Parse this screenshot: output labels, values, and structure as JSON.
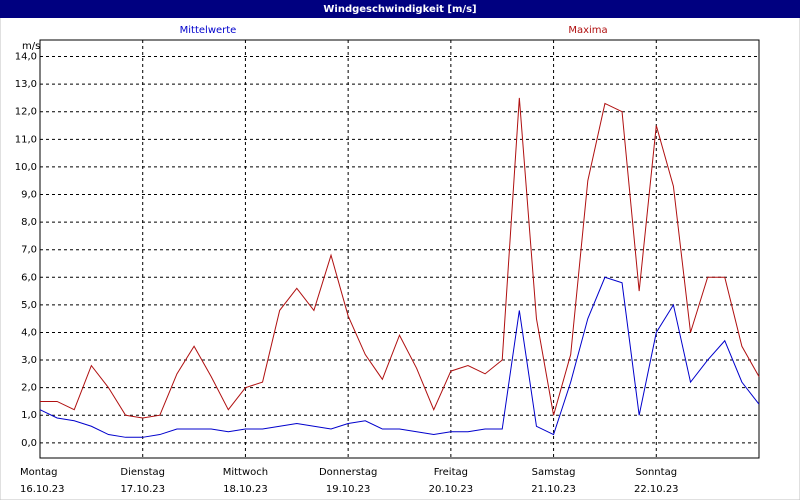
{
  "chart_data": {
    "type": "line",
    "title": "Windgeschwindigkeit [m/s]",
    "y_label": "m/s",
    "x": [
      0,
      4,
      8,
      12,
      16,
      20,
      24,
      28,
      32,
      36,
      40,
      44,
      48,
      52,
      56,
      60,
      64,
      68,
      72,
      76,
      80,
      84,
      88,
      92,
      96,
      100,
      104,
      108,
      112,
      116,
      120,
      124,
      128,
      132,
      136,
      140,
      144,
      148,
      152,
      156,
      160,
      164,
      168
    ],
    "xlim": [
      0,
      168
    ],
    "xticks": [
      {
        "value": 0,
        "label": "Montag"
      },
      {
        "value": 24,
        "label": "Dienstag"
      },
      {
        "value": 48,
        "label": "Mittwoch"
      },
      {
        "value": 72,
        "label": "Donnerstag"
      },
      {
        "value": 96,
        "label": "Freitag"
      },
      {
        "value": 120,
        "label": "Samstag"
      },
      {
        "value": 144,
        "label": "Sonntag"
      }
    ],
    "xtick_dates": [
      "16.10.23",
      "17.10.23",
      "18.10.23",
      "19.10.23",
      "20.10.23",
      "21.10.23",
      "22.10.23"
    ],
    "ylim": [
      -0.55,
      14.6
    ],
    "yticks": [
      {
        "value": 0,
        "label": "0,0"
      },
      {
        "value": 1,
        "label": "1,0"
      },
      {
        "value": 2,
        "label": "2,0"
      },
      {
        "value": 3,
        "label": "3,0"
      },
      {
        "value": 4,
        "label": "4,0"
      },
      {
        "value": 5,
        "label": "5,0"
      },
      {
        "value": 6,
        "label": "6,0"
      },
      {
        "value": 7,
        "label": "7,0"
      },
      {
        "value": 8,
        "label": "8,0"
      },
      {
        "value": 9,
        "label": "9,0"
      },
      {
        "value": 10,
        "label": "10,0"
      },
      {
        "value": 11,
        "label": "11,0"
      },
      {
        "value": 12,
        "label": "12,0"
      },
      {
        "value": 13,
        "label": "13,0"
      },
      {
        "value": 14,
        "label": "14,0"
      }
    ],
    "grid": true,
    "series": [
      {
        "name": "Mittelwerte",
        "color": "#0000cc",
        "values": [
          1.2,
          0.9,
          0.8,
          0.6,
          0.3,
          0.2,
          0.2,
          0.3,
          0.5,
          0.5,
          0.5,
          0.4,
          0.5,
          0.5,
          0.6,
          0.7,
          0.6,
          0.5,
          0.7,
          0.8,
          0.5,
          0.5,
          0.4,
          0.3,
          0.4,
          0.4,
          0.5,
          0.5,
          4.8,
          0.6,
          0.3,
          2.2,
          4.5,
          6.0,
          5.8,
          1.0,
          4.0,
          5.0,
          2.2,
          3.0,
          3.7,
          2.2,
          1.4
        ]
      },
      {
        "name": "Maxima",
        "color": "#b01010",
        "values": [
          1.5,
          1.5,
          1.2,
          2.8,
          2.0,
          1.0,
          0.9,
          1.0,
          2.5,
          3.5,
          2.4,
          1.2,
          2.0,
          2.2,
          4.8,
          5.6,
          4.8,
          6.8,
          4.6,
          3.2,
          2.3,
          3.9,
          2.7,
          1.2,
          2.6,
          2.8,
          2.5,
          3.0,
          12.5,
          4.5,
          1.0,
          3.2,
          9.5,
          12.3,
          12.0,
          5.5,
          11.5,
          9.3,
          4.0,
          6.0,
          6.0,
          3.5,
          2.4
        ]
      }
    ]
  }
}
